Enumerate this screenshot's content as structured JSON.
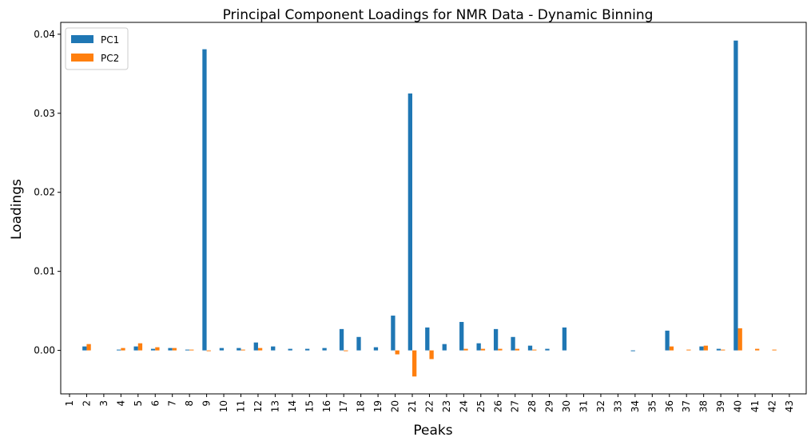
{
  "chart_data": {
    "type": "bar",
    "title": "Principal Component Loadings for NMR Data - Dynamic Binning",
    "xlabel": "Peaks",
    "ylabel": "Loadings",
    "categories": [
      "1",
      "2",
      "3",
      "4",
      "5",
      "6",
      "7",
      "8",
      "9",
      "10",
      "11",
      "12",
      "13",
      "14",
      "15",
      "16",
      "17",
      "18",
      "19",
      "20",
      "21",
      "22",
      "23",
      "24",
      "25",
      "26",
      "27",
      "28",
      "29",
      "30",
      "31",
      "32",
      "33",
      "34",
      "35",
      "36",
      "37",
      "38",
      "39",
      "40",
      "41",
      "42",
      "43"
    ],
    "series": [
      {
        "name": "PC1",
        "color": "#1f77b4",
        "values": [
          0,
          0.0005,
          0,
          0.0001,
          0.0005,
          0.0002,
          0.0003,
          0.0001,
          0.0381,
          0.0003,
          0.0003,
          0.001,
          0.0005,
          0.0002,
          0.0002,
          0.0003,
          0.0027,
          0.0017,
          0.0004,
          0.0044,
          0.0325,
          0.0029,
          0.0008,
          0.0036,
          0.0009,
          0.0027,
          0.0017,
          0.0006,
          0.0002,
          0.0029,
          0,
          0,
          0,
          -0.0001,
          0,
          0.0025,
          0,
          0.0005,
          0.0002,
          0.0392,
          0,
          0,
          0
        ]
      },
      {
        "name": "PC2",
        "color": "#ff7f0e",
        "values": [
          0,
          0.0008,
          0,
          0.0003,
          0.0009,
          0.0004,
          0.0003,
          0.0001,
          -0.0001,
          0,
          0.0001,
          0.0003,
          0,
          0,
          0,
          0,
          -0.0001,
          0,
          0,
          -0.0005,
          -0.0033,
          -0.0011,
          0,
          0.0002,
          0.0002,
          0.0002,
          0.0002,
          0.0001,
          0,
          0,
          0,
          0,
          0,
          0,
          0,
          0.0005,
          0.0001,
          0.0006,
          0.0001,
          0.0028,
          0.0002,
          0.0001,
          0
        ]
      }
    ],
    "ylim": [
      -0.0055,
      0.0415
    ],
    "yticks": [
      0.0,
      0.01,
      0.02,
      0.03,
      0.04
    ],
    "ytick_labels": [
      "0.00",
      "0.01",
      "0.02",
      "0.03",
      "0.04"
    ],
    "grid": false,
    "legend_position": "top-left"
  }
}
